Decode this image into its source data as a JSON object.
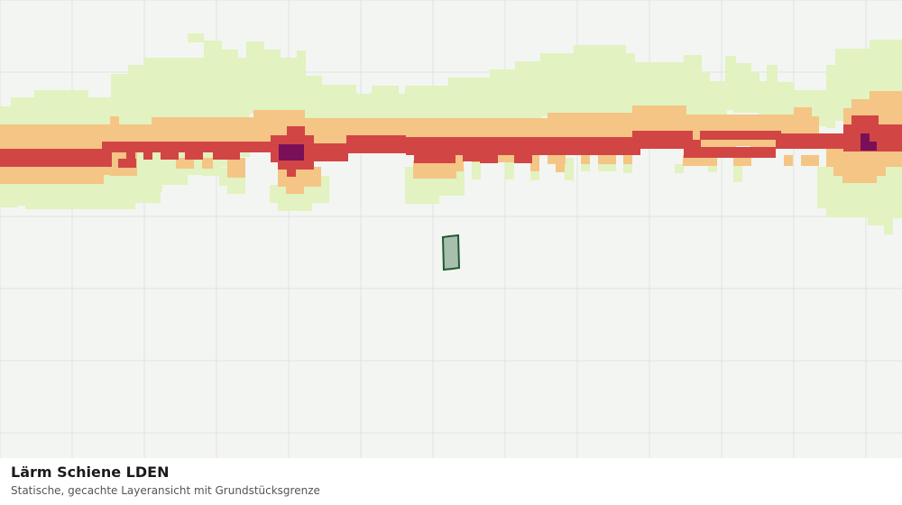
{
  "layer": {
    "title": "Lärm Schiene LDEN",
    "subtitle": "Statische, gecachte Layeransicht mit Grundstücksgrenze"
  },
  "colors": {
    "background": "#f3f5f2",
    "grid": "#dfe2de",
    "noise_band_1": "#e2f2c0",
    "noise_band_2": "#f4c585",
    "noise_band_3": "#d24545",
    "noise_band_4": "#7a0f59",
    "parcel_fill": "#a9bfad",
    "parcel_stroke": "#1f5a32"
  },
  "icons": {
    "parcel": "parcel-boundary-shape"
  }
}
